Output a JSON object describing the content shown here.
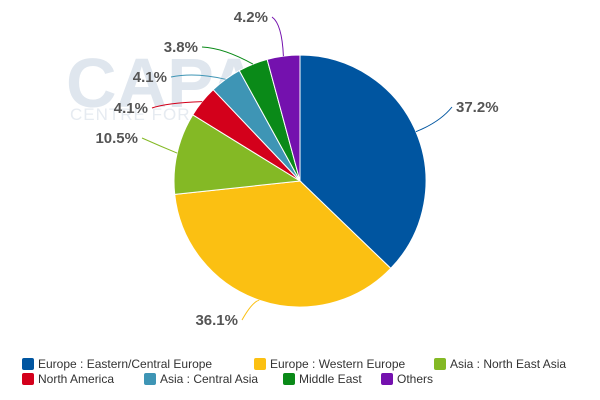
{
  "watermark": {
    "logo_text": "CAPA",
    "logo_subtext": "CENTRE FOR"
  },
  "chart_data": {
    "type": "pie",
    "title": "",
    "slices": [
      {
        "name": "Europe : Eastern/Central Europe",
        "value": 37.2,
        "label": "37.2%",
        "color": "#0055a0"
      },
      {
        "name": "Europe : Western Europe",
        "value": 36.1,
        "label": "36.1%",
        "color": "#fbc012"
      },
      {
        "name": "Asia : North East Asia",
        "value": 10.5,
        "label": "10.5%",
        "color": "#84b925"
      },
      {
        "name": "North America",
        "value": 4.1,
        "label": "4.1%",
        "color": "#d3001b"
      },
      {
        "name": "Asia : Central Asia",
        "value": 4.1,
        "label": "4.1%",
        "color": "#3e95b5"
      },
      {
        "name": "Middle East",
        "value": 3.8,
        "label": "3.8%",
        "color": "#0a8a18"
      },
      {
        "name": "Others",
        "value": 4.2,
        "label": "4.2%",
        "color": "#7411ae"
      }
    ],
    "start_angle": "12 o'clock",
    "direction": "clockwise",
    "legend_position": "bottom"
  }
}
